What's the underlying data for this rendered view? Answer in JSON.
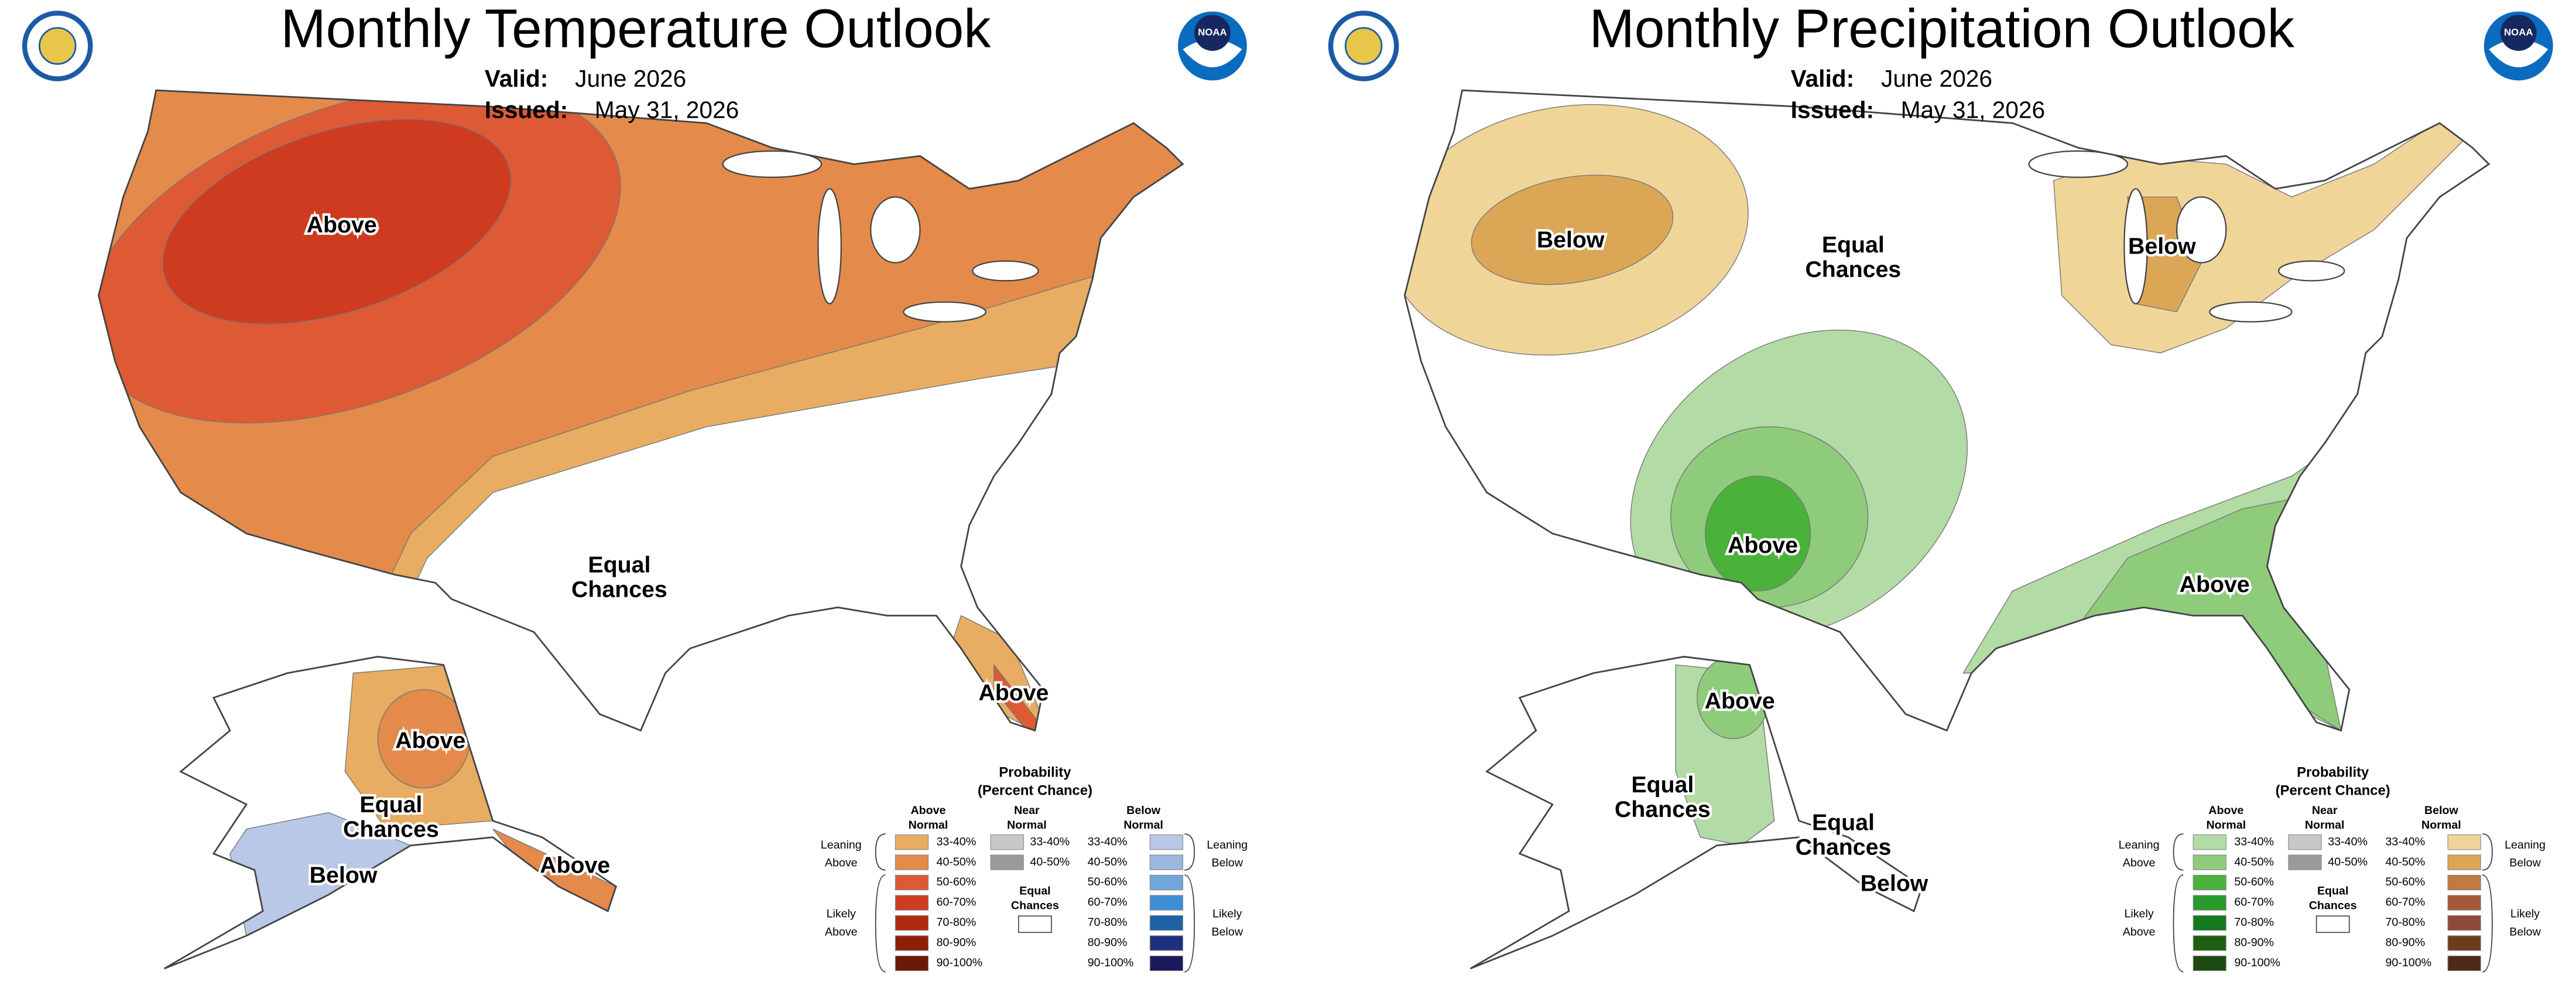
{
  "panels": [
    {
      "title": "Monthly Temperature Outlook",
      "valid_label": "Valid:",
      "valid": "June 2026",
      "issued_label": "Issued:",
      "issued": "May 31, 2026",
      "logo_text": "NOAA",
      "map_labels": [
        {
          "lines": [
            "Above"
          ]
        },
        {
          "lines": [
            "Equal",
            "Chances"
          ]
        },
        {
          "lines": [
            "Above"
          ]
        },
        {
          "lines": [
            "Above"
          ]
        },
        {
          "lines": [
            "Equal",
            "Chances"
          ]
        },
        {
          "lines": [
            "Below"
          ]
        },
        {
          "lines": [
            "Above"
          ]
        }
      ],
      "legend": {
        "title": [
          "Probability",
          "(Percent Chance)"
        ],
        "above": {
          "header": [
            "Above",
            "Normal"
          ],
          "classes": [
            {
              "label": "33-40%",
              "color": "#e8ad62"
            },
            {
              "label": "40-50%",
              "color": "#e48a4a"
            },
            {
              "label": "50-60%",
              "color": "#dd5a35"
            },
            {
              "label": "60-70%",
              "color": "#cf3b20"
            },
            {
              "label": "70-80%",
              "color": "#b22a0e"
            },
            {
              "label": "80-90%",
              "color": "#8e2008"
            },
            {
              "label": "90-100%",
              "color": "#6a1a06"
            }
          ]
        },
        "near": {
          "header": [
            "Near",
            "Normal"
          ],
          "classes": [
            {
              "label": "33-40%",
              "color": "#c8c8c8"
            },
            {
              "label": "40-50%",
              "color": "#9a9a9a"
            }
          ]
        },
        "below": {
          "header": [
            "Below",
            "Normal"
          ],
          "classes": [
            {
              "label": "33-40%",
              "color": "#b8c8e6"
            },
            {
              "label": "40-50%",
              "color": "#9ab8df"
            },
            {
              "label": "50-60%",
              "color": "#6fa7dc"
            },
            {
              "label": "60-70%",
              "color": "#3c8fd6"
            },
            {
              "label": "70-80%",
              "color": "#1b63a5"
            },
            {
              "label": "80-90%",
              "color": "#1f2f80"
            },
            {
              "label": "90-100%",
              "color": "#1c1a5c"
            }
          ]
        },
        "equal_chances": [
          "Equal",
          "Chances"
        ],
        "leaning_above": [
          "Leaning",
          "Above"
        ],
        "likely_above": [
          "Likely",
          "Above"
        ],
        "leaning_below": [
          "Leaning",
          "Below"
        ],
        "likely_below": [
          "Likely",
          "Below"
        ]
      }
    },
    {
      "title": "Monthly Precipitation Outlook",
      "valid_label": "Valid:",
      "valid": "June 2026",
      "issued_label": "Issued:",
      "issued": "May 31, 2026",
      "logo_text": "NOAA",
      "map_labels": [
        {
          "lines": [
            "Below"
          ]
        },
        {
          "lines": [
            "Equal",
            "Chances"
          ]
        },
        {
          "lines": [
            "Below"
          ]
        },
        {
          "lines": [
            "Above"
          ]
        },
        {
          "lines": [
            "Above"
          ]
        },
        {
          "lines": [
            "Above"
          ]
        },
        {
          "lines": [
            "Equal",
            "Chances"
          ]
        },
        {
          "lines": [
            "Equal",
            "Chances"
          ]
        },
        {
          "lines": [
            "Below"
          ]
        }
      ],
      "legend": {
        "title": [
          "Probability",
          "(Percent Chance)"
        ],
        "above": {
          "header": [
            "Above",
            "Normal"
          ],
          "classes": [
            {
              "label": "33-40%",
              "color": "#b3dba5"
            },
            {
              "label": "40-50%",
              "color": "#8ecc7c"
            },
            {
              "label": "50-60%",
              "color": "#4ab23a"
            },
            {
              "label": "60-70%",
              "color": "#279a2c"
            },
            {
              "label": "70-80%",
              "color": "#157a1c"
            },
            {
              "label": "80-90%",
              "color": "#1d5e10"
            },
            {
              "label": "90-100%",
              "color": "#1c4a12"
            }
          ]
        },
        "near": {
          "header": [
            "Near",
            "Normal"
          ],
          "classes": [
            {
              "label": "33-40%",
              "color": "#c8c8c8"
            },
            {
              "label": "40-50%",
              "color": "#9a9a9a"
            }
          ]
        },
        "below": {
          "header": [
            "Below",
            "Normal"
          ],
          "classes": [
            {
              "label": "33-40%",
              "color": "#f0d598"
            },
            {
              "label": "40-50%",
              "color": "#dba756"
            },
            {
              "label": "50-60%",
              "color": "#c07a44"
            },
            {
              "label": "60-70%",
              "color": "#a5573a"
            },
            {
              "label": "70-80%",
              "color": "#8f4a3a"
            },
            {
              "label": "80-90%",
              "color": "#6e3b1c"
            },
            {
              "label": "90-100%",
              "color": "#4b2a1a"
            }
          ]
        },
        "equal_chances": [
          "Equal",
          "Chances"
        ],
        "leaning_above": [
          "Leaning",
          "Above"
        ],
        "likely_above": [
          "Likely",
          "Above"
        ],
        "leaning_below": [
          "Leaning",
          "Below"
        ],
        "likely_below": [
          "Likely",
          "Below"
        ]
      }
    }
  ]
}
